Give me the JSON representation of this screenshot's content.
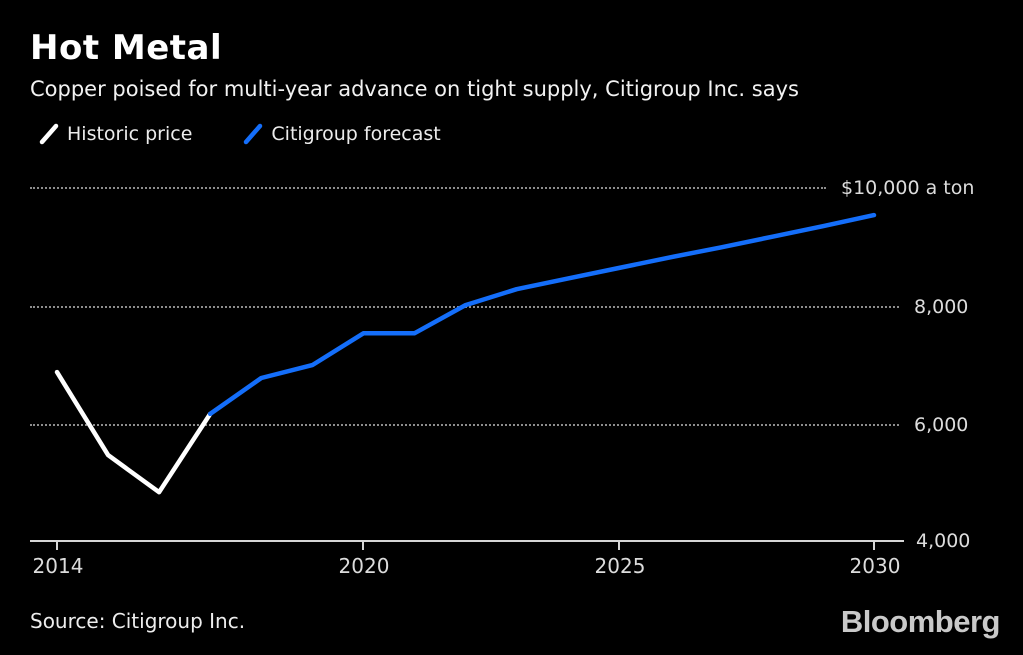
{
  "title": "Hot Metal",
  "subtitle": "Copper poised for multi-year advance on tight supply, Citigroup Inc. says",
  "source": "Source: Citigroup Inc.",
  "brand": "Bloomberg",
  "colors": {
    "background": "#000000",
    "historic_line": "#ffffff",
    "forecast_line": "#146efa",
    "gridline": "#8d8d8d",
    "axis": "#d6d6d6",
    "text": "#f2f2f2"
  },
  "chart_data": {
    "type": "line",
    "title": "Hot Metal",
    "subtitle": "Copper poised for multi-year advance on tight supply, Citigroup Inc. says",
    "xlabel": "",
    "ylabel": "$ a ton",
    "xlim": [
      2014,
      2030
    ],
    "ylim": [
      4000,
      10000
    ],
    "grid": "horizontal dotted",
    "legend_position": "top-left",
    "x_ticks": [
      {
        "value": 2014,
        "label": "2014"
      },
      {
        "value": 2020,
        "label": "2020"
      },
      {
        "value": 2025,
        "label": "2025"
      },
      {
        "value": 2030,
        "label": "2030"
      }
    ],
    "y_ticks": [
      {
        "value": 10000,
        "label": "$10,000 a ton"
      },
      {
        "value": 8000,
        "label": "8,000"
      },
      {
        "value": 6000,
        "label": "6,000"
      },
      {
        "value": 4000,
        "label": "4,000"
      }
    ],
    "series": [
      {
        "name": "Historic price",
        "color": "#ffffff",
        "x": [
          2014,
          2015,
          2016,
          2017
        ],
        "values": [
          6870,
          5460,
          4830,
          6160
        ]
      },
      {
        "name": "Citigroup forecast",
        "color": "#146efa",
        "x": [
          2017,
          2018,
          2019,
          2020,
          2021,
          2022,
          2023,
          2024,
          2025,
          2026,
          2027,
          2028,
          2029,
          2030
        ],
        "values": [
          6160,
          6770,
          6990,
          7530,
          7530,
          8010,
          8280,
          8460,
          8640,
          8820,
          8990,
          9170,
          9350,
          9540
        ]
      }
    ]
  }
}
